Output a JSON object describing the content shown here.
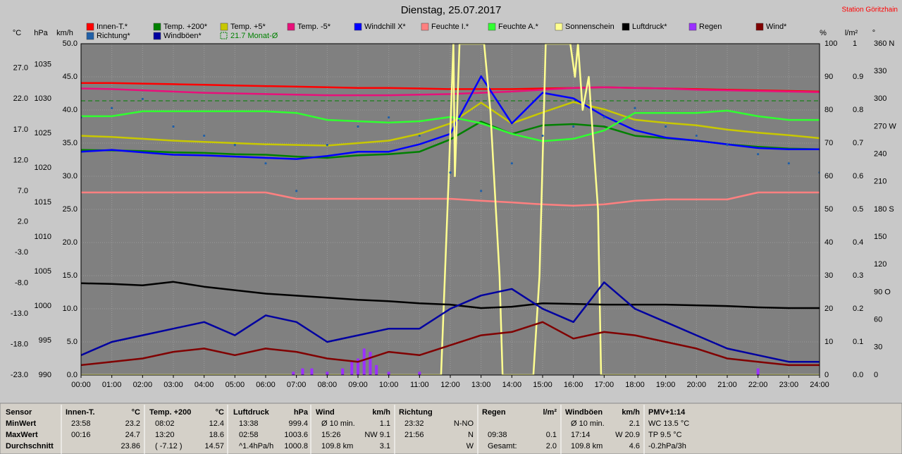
{
  "chart_data": {
    "type": "line",
    "title": "Dienstag, 25.07.2017",
    "station": "Station Göritzhain",
    "x": [
      0,
      1,
      2,
      3,
      4,
      5,
      6,
      7,
      8,
      9,
      10,
      11,
      12,
      13,
      14,
      15,
      16,
      17,
      18,
      19,
      20,
      21,
      22,
      23,
      24
    ],
    "xlim": [
      0,
      24
    ],
    "xticks": [
      {
        "value": 0,
        "label": "00:00"
      },
      {
        "value": 1,
        "label": "01:00"
      },
      {
        "value": 2,
        "label": "02:00"
      },
      {
        "value": 3,
        "label": "03:00"
      },
      {
        "value": 4,
        "label": "04:00"
      },
      {
        "value": 5,
        "label": "05:00"
      },
      {
        "value": 6,
        "label": "06:00"
      },
      {
        "value": 7,
        "label": "07:00"
      },
      {
        "value": 8,
        "label": "08:00"
      },
      {
        "value": 9,
        "label": "09:00"
      },
      {
        "value": 10,
        "label": "10:00"
      },
      {
        "value": 11,
        "label": "11:00"
      },
      {
        "value": 12,
        "label": "12:00"
      },
      {
        "value": 13,
        "label": "13:00"
      },
      {
        "value": 14,
        "label": "14:00"
      },
      {
        "value": 15,
        "label": "15:00"
      },
      {
        "value": 16,
        "label": "16:00"
      },
      {
        "value": 17,
        "label": "17:00"
      },
      {
        "value": 18,
        "label": "18:00"
      },
      {
        "value": 19,
        "label": "19:00"
      },
      {
        "value": 20,
        "label": "20:00"
      },
      {
        "value": 21,
        "label": "21:00"
      },
      {
        "value": 22,
        "label": "22:00"
      },
      {
        "value": 23,
        "label": "23:00"
      },
      {
        "value": 24,
        "label": "24:00"
      }
    ],
    "y_axes": [
      {
        "label": "°C",
        "ylim": [
          -23,
          31.0
        ],
        "yticks": [
          {
            "value": -23,
            "label": "-23.0"
          },
          {
            "value": -18,
            "label": "-18.0"
          },
          {
            "value": -13,
            "label": "-13.0"
          },
          {
            "value": -8,
            "label": "-8.0"
          },
          {
            "value": -3,
            "label": "-3.0"
          },
          {
            "value": 2,
            "label": "2.0"
          },
          {
            "value": 7,
            "label": "7.0"
          },
          {
            "value": 12,
            "label": "12.0"
          },
          {
            "value": 17,
            "label": "17.0"
          },
          {
            "value": 22,
            "label": "22.0"
          },
          {
            "value": 27,
            "label": "27.0"
          }
        ]
      },
      {
        "label": "hPa",
        "ylim": [
          990,
          1038.0
        ],
        "yticks": [
          990,
          995,
          1000,
          1005,
          1010,
          1015,
          1020,
          1025,
          1030,
          1035
        ]
      },
      {
        "label": "km/h",
        "ylim": [
          0,
          50
        ],
        "grid": true,
        "yticks": [
          {
            "value": 0,
            "label": "0.0"
          },
          {
            "value": 5,
            "label": "5.0"
          },
          {
            "value": 10,
            "label": "10.0"
          },
          {
            "value": 15,
            "label": "15.0"
          },
          {
            "value": 20,
            "label": "20.0"
          },
          {
            "value": 25,
            "label": "25.0"
          },
          {
            "value": 30,
            "label": "30.0"
          },
          {
            "value": 35,
            "label": "35.0"
          },
          {
            "value": 40,
            "label": "40.0"
          },
          {
            "value": 45,
            "label": "45.0"
          },
          {
            "value": 50,
            "label": "50.0"
          }
        ]
      },
      {
        "label": "%",
        "ylim": [
          0,
          100
        ],
        "yticks": [
          0,
          10,
          20,
          30,
          40,
          50,
          60,
          70,
          80,
          90,
          100
        ]
      },
      {
        "label": "l/m²",
        "ylim": [
          0,
          1
        ],
        "yticks": [
          {
            "value": 0,
            "label": "0.0"
          },
          0.1,
          0.2,
          0.3,
          0.4,
          0.5,
          0.6,
          0.7,
          0.8,
          0.9,
          1
        ]
      },
      {
        "label": "°",
        "ylim": [
          0,
          360
        ],
        "yticks": [
          0,
          30,
          60,
          {
            "value": 90,
            "label": "90 O"
          },
          120,
          150,
          {
            "value": 180,
            "label": "180 S"
          },
          210,
          240,
          {
            "value": 270,
            "label": "270 W"
          },
          300,
          330,
          {
            "value": 360,
            "label": "360 N"
          }
        ]
      }
    ],
    "series": [
      {
        "name": "Innen-T.*",
        "color": "#ff0000",
        "axis": 0,
        "values": [
          24.6,
          24.6,
          24.5,
          24.4,
          24.3,
          24.2,
          24.1,
          24.0,
          23.9,
          23.8,
          23.8,
          23.7,
          23.6,
          23.6,
          23.6,
          23.7,
          23.8,
          23.9,
          23.8,
          23.7,
          23.6,
          23.5,
          23.4,
          23.3,
          23.2
        ]
      },
      {
        "name": "Temp. +200*",
        "color": "#008000",
        "axis": 0,
        "values": [
          13.7,
          13.6,
          13.5,
          13.3,
          13.2,
          13.0,
          12.9,
          12.6,
          12.4,
          12.8,
          13.0,
          13.4,
          15.4,
          18.3,
          16.3,
          17.7,
          17.9,
          17.5,
          16.0,
          15.6,
          15.2,
          14.6,
          14.2,
          13.9,
          13.8
        ]
      },
      {
        "name": "Temp. +5*",
        "color": "#c8c800",
        "axis": 0,
        "values": [
          16.0,
          15.8,
          15.5,
          15.2,
          15.0,
          14.8,
          14.6,
          14.5,
          14.4,
          14.8,
          15.2,
          16.3,
          18.0,
          21.4,
          18.0,
          19.8,
          21.5,
          20.3,
          18.6,
          18.1,
          17.7,
          17.0,
          16.5,
          16.1,
          15.6
        ]
      },
      {
        "name": "Temp. -5*",
        "color": "#e8107a",
        "axis": 0,
        "values": [
          23.7,
          23.6,
          23.4,
          23.2,
          23.0,
          22.9,
          22.8,
          22.7,
          22.6,
          22.6,
          22.6,
          22.7,
          22.8,
          23.0,
          23.2,
          23.5,
          23.8,
          23.9,
          23.8,
          23.7,
          23.5,
          23.4,
          23.3,
          23.2,
          23.1
        ]
      },
      {
        "name": "Windchill X*",
        "color": "#0000ff",
        "axis": 0,
        "values": [
          13.4,
          13.7,
          13.3,
          12.9,
          12.8,
          12.6,
          12.4,
          12.2,
          12.7,
          13.4,
          13.4,
          14.6,
          16.3,
          25.7,
          18.0,
          23.0,
          22.1,
          19.2,
          16.9,
          15.7,
          15.2,
          14.6,
          14.0,
          13.8,
          13.8
        ]
      },
      {
        "name": "Feuchte I.*",
        "color": "#ff8080",
        "axis": 3,
        "values": [
          55.1,
          55.1,
          55.1,
          55.1,
          55.1,
          55.1,
          55.1,
          53.2,
          53.2,
          53.2,
          53.2,
          53.2,
          53.2,
          52.6,
          52.1,
          51.5,
          51.1,
          51.5,
          52.6,
          53.0,
          53.0,
          53.0,
          55.1,
          55.1,
          55.1
        ]
      },
      {
        "name": "Feuchte A.*",
        "color": "#30ff30",
        "axis": 3,
        "values": [
          78.1,
          78.1,
          79.6,
          79.6,
          79.6,
          79.6,
          79.6,
          79.1,
          77.0,
          76.6,
          76.2,
          76.6,
          77.9,
          76.0,
          72.8,
          70.6,
          71.3,
          73.8,
          79.1,
          79.1,
          79.1,
          79.8,
          78.1,
          77.0,
          77.0
        ]
      },
      {
        "name": "Sonnenschein",
        "color": "#ffff90",
        "axis": 3,
        "x": [
          0,
          11.7,
          11.95,
          12.1,
          12.15,
          12.3,
          12.35,
          13.1,
          13.3,
          13.6,
          13.7,
          14.7,
          14.9,
          15.1,
          15.9,
          16.05,
          16.15,
          16.3,
          16.5,
          16.8,
          16.9,
          24
        ],
        "values": [
          0,
          0,
          60,
          100,
          60,
          100,
          100,
          100,
          80,
          30,
          0,
          0,
          30,
          100,
          100,
          90,
          100,
          80,
          90,
          50,
          0,
          0
        ]
      },
      {
        "name": "Luftdruck*",
        "color": "#000000",
        "axis": 1,
        "values": [
          1003.3,
          1003.2,
          1003.0,
          1003.5,
          1002.8,
          1002.3,
          1001.8,
          1001.5,
          1001.2,
          1000.9,
          1000.7,
          1000.4,
          1000.2,
          999.7,
          999.9,
          1000.4,
          1000.3,
          1000.2,
          1000.2,
          1000.2,
          1000.1,
          1000.0,
          999.8,
          999.7,
          999.7
        ]
      },
      {
        "name": "Regen",
        "color": "#9b30ff",
        "axis": 4,
        "kind": "bar",
        "x": [
          6.9,
          7.2,
          7.5,
          8.0,
          8.5,
          8.8,
          9.0,
          9.2,
          9.4,
          9.6,
          10.0,
          11.0,
          22.0
        ],
        "values": [
          0.01,
          0.02,
          0.02,
          0.01,
          0.02,
          0.04,
          0.05,
          0.08,
          0.07,
          0.03,
          0.01,
          0.01,
          0.02
        ]
      },
      {
        "name": "Wind*",
        "color": "#800000",
        "axis": 2,
        "values": [
          1.5,
          2.0,
          2.5,
          3.5,
          4.0,
          3.0,
          4.0,
          3.5,
          2.5,
          2.0,
          3.5,
          3.0,
          4.5,
          6.0,
          6.5,
          8.0,
          5.5,
          6.5,
          6.0,
          5.0,
          4.0,
          2.5,
          2.0,
          1.5,
          1.5
        ]
      },
      {
        "name": "Richtung*",
        "color": "#2060a8",
        "axis": 5,
        "kind": "scatter",
        "values": [
          280,
          290,
          300,
          270,
          260,
          250,
          230,
          200,
          250,
          270,
          280,
          260,
          220,
          200,
          230,
          260,
          270,
          280,
          290,
          270,
          260,
          250,
          240,
          230,
          220
        ]
      },
      {
        "name": "Windböen*",
        "color": "#0000a0",
        "axis": 2,
        "values": [
          3,
          5,
          6,
          7,
          8,
          6,
          9,
          8,
          5,
          6,
          7,
          7,
          10,
          12,
          13,
          10,
          8,
          14,
          10,
          8,
          6,
          4,
          3,
          2,
          2
        ]
      }
    ],
    "month_average": {
      "value": 21.7,
      "label": "21.7 Monat-Ø",
      "color": "#008000",
      "axis": 0
    }
  },
  "table": {
    "title": "Sensor",
    "columns": [
      {
        "name": "Innen-T.",
        "unit": "°C"
      },
      {
        "name": "Temp. +200",
        "unit": "°C"
      },
      {
        "name": "Luftdruck",
        "unit": "hPa"
      },
      {
        "name": "Wind",
        "unit": "km/h"
      },
      {
        "name": "Richtung"
      },
      {
        "name": "Regen",
        "unit": "l/m²"
      },
      {
        "name": "Windböen",
        "unit": "km/h"
      },
      {
        "name": "PMV+1:14"
      }
    ],
    "row_labels": [
      "MinWert",
      "MaxWert",
      "Durchschnitt"
    ],
    "rows": [
      [
        [
          "23:58",
          "23.2"
        ],
        [
          "08:02",
          "12.4"
        ],
        [
          "13:38",
          "999.4"
        ],
        [
          "Ø 10 min.",
          "1.1"
        ],
        [
          "23:32",
          "N-NO"
        ],
        [],
        [
          "Ø 10 min.",
          "2.1"
        ],
        [
          "WC 13.5 °C"
        ]
      ],
      [
        [
          "00:16",
          "24.7"
        ],
        [
          "13:20",
          "18.6"
        ],
        [
          "02:58",
          "1003.6"
        ],
        [
          "15:26",
          "NW 9.1"
        ],
        [
          "21:56",
          "N"
        ],
        [
          "09:38",
          "0.1"
        ],
        [
          "17:14",
          "W 20.9"
        ],
        [
          "TP 9.5 °C"
        ]
      ],
      [
        [
          "23.86"
        ],
        [
          "( -7.12 )",
          "14.57"
        ],
        [
          "^1.4hPa/h",
          "1000.8"
        ],
        [
          "109.8 km",
          "3.1"
        ],
        [
          "W"
        ],
        [
          "Gesamt:",
          "2.0"
        ],
        [
          "109.8 km",
          "4.6"
        ],
        [
          "-0.2hPa/3h"
        ]
      ]
    ]
  }
}
